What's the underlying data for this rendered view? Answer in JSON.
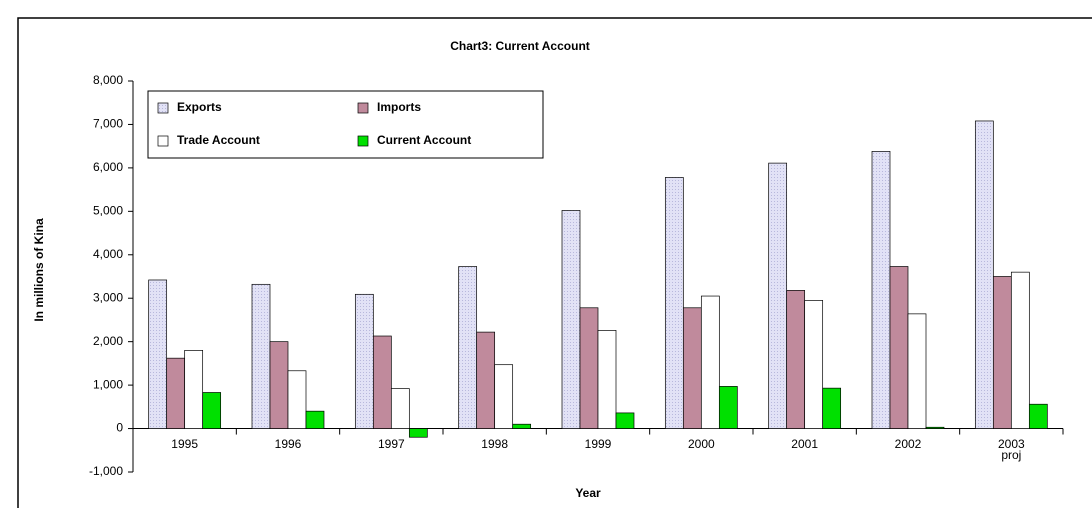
{
  "chart_data": {
    "type": "bar",
    "title": "Chart3: Current Account",
    "x_label": "Year",
    "y_label": "In millions of Kina",
    "categories": [
      "1995",
      "1996",
      "1997",
      "1998",
      "1999",
      "2000",
      "2001",
      "2002",
      "2003 proj"
    ],
    "series": [
      {
        "name": "Exports",
        "color": "#e2e2f6",
        "values": [
          3420,
          3320,
          3090,
          3730,
          5020,
          5780,
          6110,
          6380,
          7080
        ]
      },
      {
        "name": "Imports",
        "color": "#c08a9c",
        "values": [
          1620,
          2000,
          2130,
          2220,
          2780,
          2780,
          3180,
          3730,
          3500
        ]
      },
      {
        "name": "Trade Account",
        "color": "#ffffff",
        "values": [
          1800,
          1330,
          920,
          1470,
          2260,
          3050,
          2950,
          2640,
          3600
        ]
      },
      {
        "name": "Current Account",
        "color": "#00e000",
        "values": [
          830,
          400,
          -200,
          100,
          360,
          970,
          930,
          30,
          560
        ]
      }
    ],
    "ylim": [
      -1000,
      8000
    ],
    "yticks": [
      {
        "value": -1000,
        "label": "-1,000"
      },
      0,
      {
        "value": 1000,
        "label": "1,000"
      },
      {
        "value": 2000,
        "label": "2,000"
      },
      {
        "value": 3000,
        "label": "3,000"
      },
      {
        "value": 4000,
        "label": "4,000"
      },
      {
        "value": 5000,
        "label": "5,000"
      },
      {
        "value": 6000,
        "label": "6,000"
      },
      {
        "value": 7000,
        "label": "7,000"
      },
      {
        "value": 8000,
        "label": "8,000"
      }
    ],
    "legend": "upper left"
  }
}
